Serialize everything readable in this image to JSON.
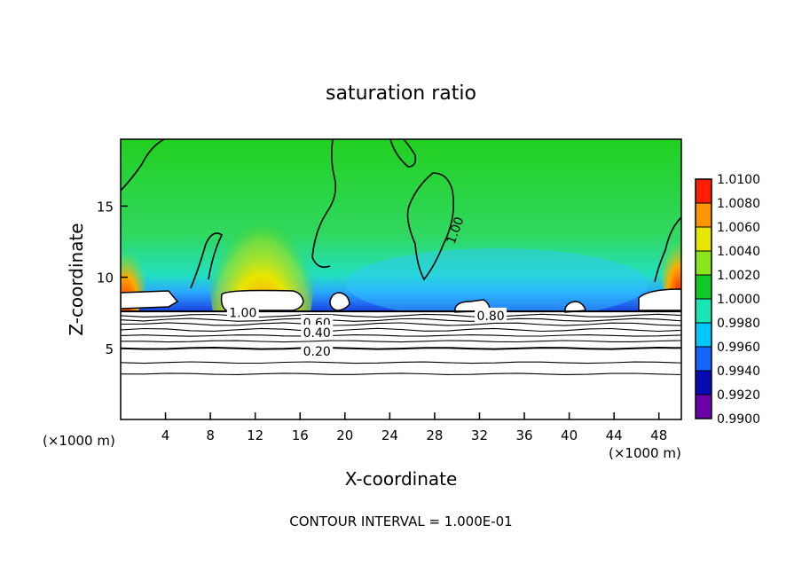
{
  "chart_data": {
    "type": "heatmap",
    "title": "saturation ratio",
    "xlabel": "X-coordinate",
    "ylabel": "Z-coordinate",
    "x_unit_left": "(×1000 m)",
    "x_unit_right": "(×1000 m)",
    "xlim": [
      0,
      50
    ],
    "ylim": [
      0,
      19.7
    ],
    "x_ticks": [
      4,
      8,
      12,
      16,
      20,
      24,
      28,
      32,
      36,
      40,
      44,
      48
    ],
    "y_ticks": [
      5,
      10,
      15
    ],
    "footer": "CONTOUR INTERVAL = 1.000E-01",
    "colorbar": {
      "levels": [
        "0.9900",
        "0.9920",
        "0.9940",
        "0.9960",
        "0.9980",
        "1.0000",
        "1.0020",
        "1.0040",
        "1.0060",
        "1.0080",
        "1.0100"
      ],
      "colors": [
        "#6a00a8",
        "#0a0ab4",
        "#1464ff",
        "#00c8ff",
        "#19e6b4",
        "#10c828",
        "#8ce61e",
        "#e6e600",
        "#ff9600",
        "#ff1e00",
        "#ff9aa0"
      ]
    },
    "contour_labels": [
      {
        "text": "1.00",
        "x": 10.9,
        "z": 7.5
      },
      {
        "text": "1.00",
        "x": 29.8,
        "z": 13.3
      },
      {
        "text": "0.80",
        "x": 33.0,
        "z": 7.3
      },
      {
        "text": "0.60",
        "x": 17.5,
        "z": 6.8
      },
      {
        "text": "0.40",
        "x": 17.5,
        "z": 6.1
      },
      {
        "text": "0.20",
        "x": 17.5,
        "z": 4.8
      }
    ],
    "cloud_base_z": 7.6,
    "contour_levels_below": [
      7.3,
      7.0,
      6.7,
      6.3,
      5.9,
      5.5,
      5.0,
      4.0,
      3.2
    ]
  }
}
